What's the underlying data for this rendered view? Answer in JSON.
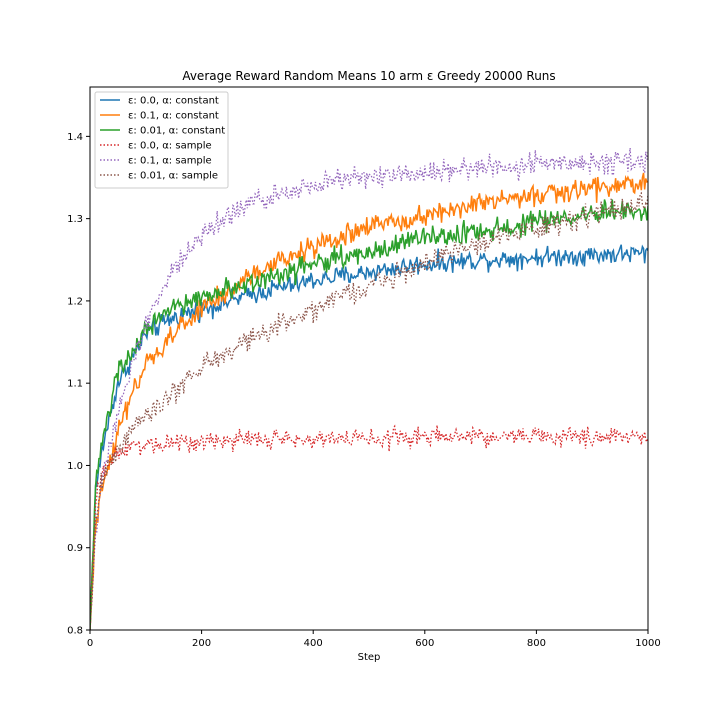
{
  "chart_data": {
    "type": "line",
    "title": "Average Reward Random Means 10 arm ε Greedy 20000 Runs",
    "xlabel": "Step",
    "ylabel": "",
    "xlim": [
      0,
      1000
    ],
    "ylim": [
      0.8,
      1.46
    ],
    "xticks": [
      0,
      200,
      400,
      600,
      800,
      1000
    ],
    "yticks": [
      0.8,
      0.9,
      1.0,
      1.1,
      1.2,
      1.3,
      1.4
    ],
    "grid": false,
    "legend_position": "top-left",
    "series": [
      {
        "name": "ε: 0.0, α: constant",
        "color": "#1f77b4",
        "style": "solid",
        "x": [
          0,
          10,
          25,
          50,
          100,
          150,
          200,
          300,
          400,
          500,
          600,
          700,
          800,
          900,
          1000
        ],
        "y": [
          0.8,
          0.97,
          1.03,
          1.1,
          1.16,
          1.18,
          1.19,
          1.21,
          1.225,
          1.235,
          1.245,
          1.25,
          1.253,
          1.256,
          1.258
        ],
        "noise": 0.006
      },
      {
        "name": "ε: 0.1, α: constant",
        "color": "#ff7f0e",
        "style": "solid",
        "x": [
          0,
          10,
          20,
          40,
          60,
          80,
          100,
          150,
          200,
          300,
          400,
          500,
          600,
          700,
          800,
          900,
          1000
        ],
        "y": [
          0.8,
          0.92,
          0.97,
          1.02,
          1.06,
          1.09,
          1.12,
          1.16,
          1.19,
          1.235,
          1.265,
          1.29,
          1.305,
          1.318,
          1.328,
          1.337,
          1.343
        ],
        "noise": 0.007
      },
      {
        "name": "ε: 0.01, α: constant",
        "color": "#2ca02c",
        "style": "solid",
        "x": [
          0,
          10,
          25,
          50,
          100,
          150,
          200,
          300,
          400,
          500,
          600,
          700,
          800,
          900,
          1000
        ],
        "y": [
          0.8,
          0.98,
          1.04,
          1.11,
          1.165,
          1.19,
          1.205,
          1.225,
          1.245,
          1.26,
          1.275,
          1.285,
          1.295,
          1.305,
          1.315
        ],
        "noise": 0.007
      },
      {
        "name": "ε: 0.0, α: sample",
        "color": "#d62728",
        "style": "dotted",
        "x": [
          0,
          10,
          20,
          40,
          60,
          100,
          200,
          400,
          600,
          800,
          1000
        ],
        "y": [
          0.8,
          0.95,
          0.99,
          1.01,
          1.02,
          1.026,
          1.03,
          1.033,
          1.034,
          1.035,
          1.035
        ],
        "noise": 0.006
      },
      {
        "name": "ε: 0.1, α: sample",
        "color": "#9467bd",
        "style": "dotted",
        "x": [
          0,
          10,
          20,
          40,
          60,
          80,
          100,
          150,
          200,
          250,
          300,
          400,
          500,
          600,
          700,
          800,
          900,
          1000
        ],
        "y": [
          0.8,
          0.92,
          0.98,
          1.04,
          1.09,
          1.13,
          1.17,
          1.24,
          1.28,
          1.305,
          1.322,
          1.342,
          1.352,
          1.358,
          1.362,
          1.365,
          1.368,
          1.37
        ],
        "noise": 0.007
      },
      {
        "name": "ε: 0.01, α: sample",
        "color": "#8c564b",
        "style": "dotted",
        "x": [
          0,
          10,
          20,
          40,
          60,
          80,
          100,
          150,
          200,
          300,
          400,
          500,
          600,
          700,
          800,
          900,
          1000
        ],
        "y": [
          0.8,
          0.93,
          0.98,
          1.01,
          1.03,
          1.05,
          1.06,
          1.09,
          1.12,
          1.16,
          1.19,
          1.22,
          1.245,
          1.27,
          1.29,
          1.305,
          1.32
        ],
        "noise": 0.007
      }
    ]
  }
}
